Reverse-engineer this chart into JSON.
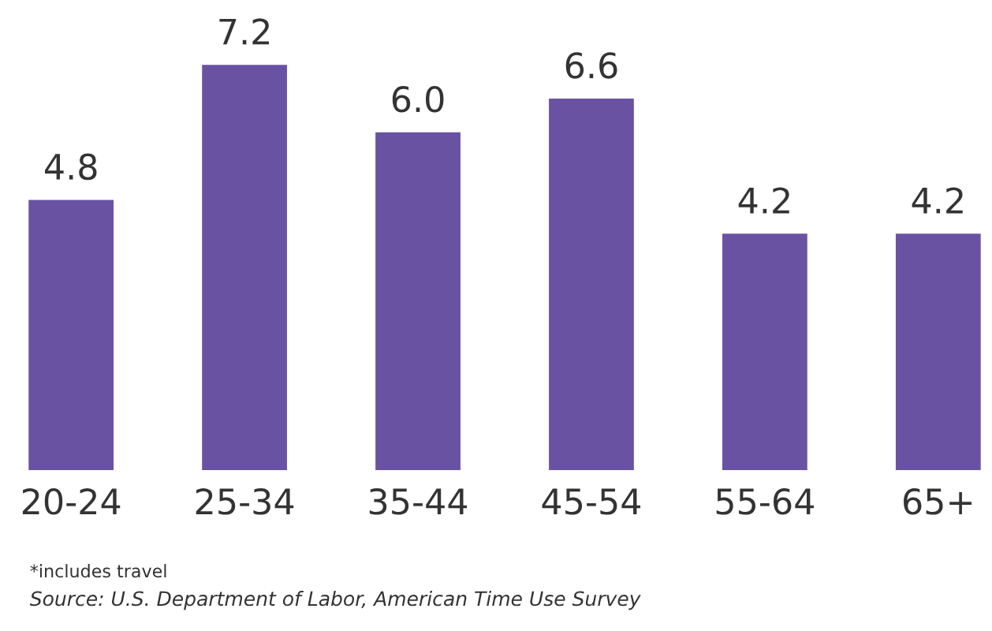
{
  "chart_data": {
    "type": "bar",
    "categories": [
      "20-24",
      "25-34",
      "35-44",
      "45-54",
      "55-64",
      "65+"
    ],
    "values": [
      4.8,
      7.2,
      6.0,
      6.6,
      4.2,
      4.2
    ],
    "color": "#6a52a3",
    "value_labels": [
      "4.8",
      "7.2",
      "6.0",
      "6.6",
      "4.2",
      "4.2"
    ],
    "grid": false,
    "legend": false,
    "annotations": [
      "*includes travel",
      "Source: U.S. Department of Labor, American Time Use Survey"
    ]
  }
}
